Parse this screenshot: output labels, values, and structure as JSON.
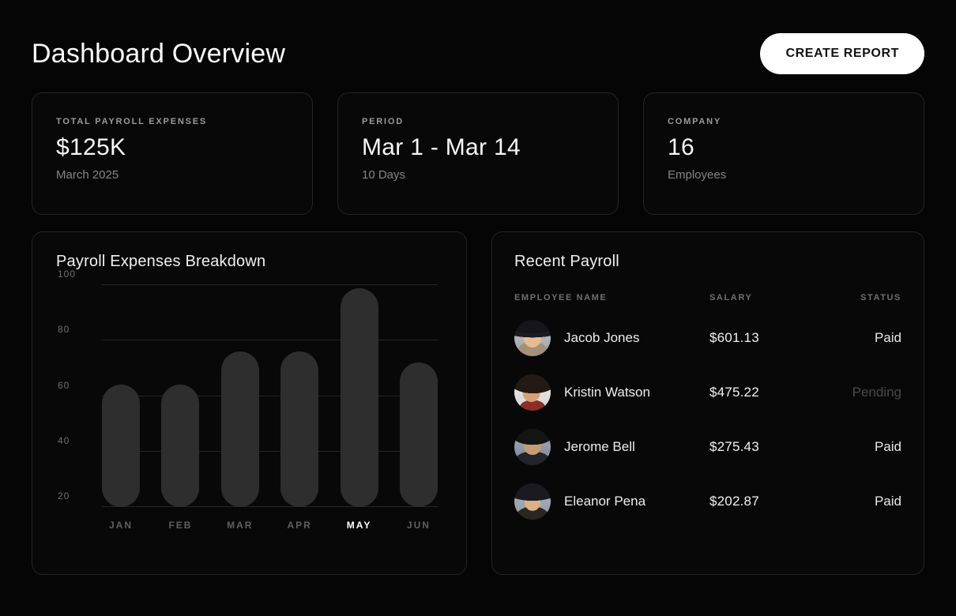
{
  "header": {
    "title": "Dashboard Overview",
    "create_report_label": "CREATE REPORT"
  },
  "stats": [
    {
      "label": "TOTAL PAYROLL EXPENSES",
      "value": "$125K",
      "sub": "March 2025"
    },
    {
      "label": "PERIOD",
      "value": "Mar 1 - Mar 14",
      "sub": "10 Days"
    },
    {
      "label": "COMPANY",
      "value": "16",
      "sub": "Employees"
    }
  ],
  "chart_card": {
    "title": "Payroll Expenses Breakdown"
  },
  "chart_data": {
    "type": "bar",
    "title": "Payroll Expenses Breakdown",
    "categories": [
      "JAN",
      "FEB",
      "MAR",
      "APR",
      "MAY",
      "JUN"
    ],
    "values": [
      64,
      64,
      76,
      76,
      99,
      72
    ],
    "highlighted_category": "MAY",
    "xlabel": "",
    "ylabel": "",
    "ylim": [
      20,
      100
    ],
    "yticks": [
      100,
      80,
      60,
      40,
      20
    ],
    "grid": true,
    "legend": false,
    "bar_color": "#2e2e2e"
  },
  "payroll": {
    "title": "Recent Payroll",
    "columns": [
      "EMPLOYEE NAME",
      "SALARY",
      "STATUS"
    ],
    "rows": [
      {
        "name": "Jacob Jones",
        "salary": "$601.13",
        "status": "Paid"
      },
      {
        "name": "Kristin Watson",
        "salary": "$475.22",
        "status": "Pending"
      },
      {
        "name": "Jerome Bell",
        "salary": "$275.43",
        "status": "Paid"
      },
      {
        "name": "Eleanor Pena",
        "salary": "$202.87",
        "status": "Paid"
      }
    ]
  },
  "colors": {
    "background": "#050505",
    "card_background": "#080808",
    "card_border": "#242424",
    "accent_button": "#ffffff",
    "bar": "#2e2e2e",
    "gridline": "#262626",
    "status_paid": "#e9e9e9",
    "status_pending": "#4a4a4a"
  }
}
